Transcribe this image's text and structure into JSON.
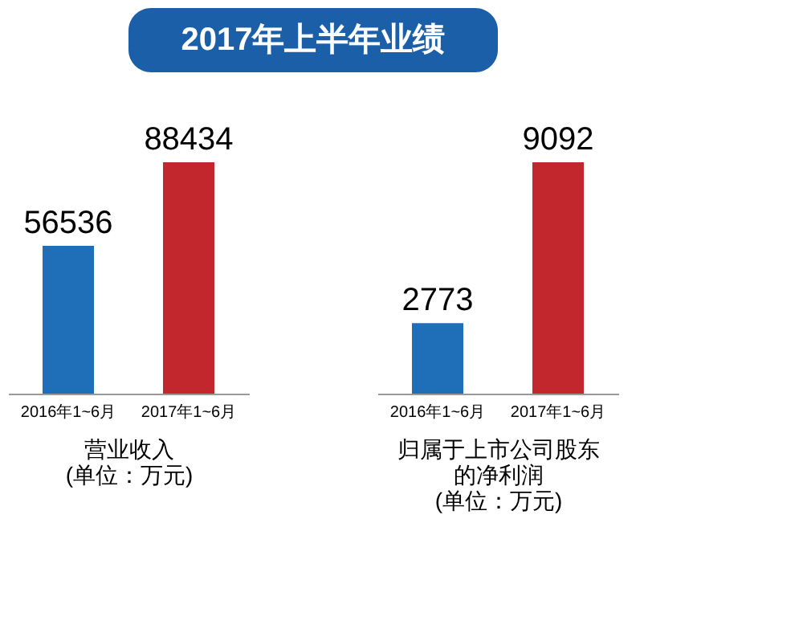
{
  "chart_data": [
    {
      "type": "bar",
      "title": "2017年上半年业绩",
      "categories": [
        "2016年1~6月",
        "2017年1~6月"
      ],
      "values": [
        56536,
        88434
      ],
      "colors": [
        "#1f6eb8",
        "#c1272d"
      ],
      "data_labels": true,
      "xlabel": "营业收入\n(单位：万元)"
    },
    {
      "type": "bar",
      "categories": [
        "2016年1~6月",
        "2017年1~6月"
      ],
      "values": [
        2773,
        9092
      ],
      "colors": [
        "#1f6eb8",
        "#c1272d"
      ],
      "data_labels": true,
      "xlabel": "归属于上市公司股东的净利润\n(单位：万元)"
    }
  ]
}
